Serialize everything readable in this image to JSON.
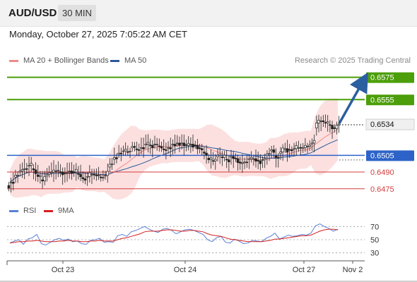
{
  "header": {
    "symbol": "AUD/USD",
    "interval": "30 MIN",
    "datetime": "Monday, October 27, 2025 7:05:22 AM CET"
  },
  "legend": {
    "ma20": {
      "label": "MA 20 + Bollinger Bands",
      "color": "#f08a8a"
    },
    "ma50": {
      "label": "MA 50",
      "color": "#2a5a9a"
    },
    "credit": "Research © 2025 Trading Central"
  },
  "rsi_legend": {
    "rsi": {
      "label": "RSI",
      "color": "#5a7fd6"
    },
    "ma9": {
      "label": "9MA",
      "color": "#d42020"
    }
  },
  "colors": {
    "resistance": "#4c9e0a",
    "support_blue": "#2d63c8",
    "support_red": "#d43c3c",
    "candle_up": "#2a2a2a",
    "band_fill": "#fbdada",
    "arrow": "#2a5fa0"
  },
  "chart_data": [
    {
      "type": "candlestick",
      "y_range": [
        0.6466,
        0.6583
      ],
      "current_price": "0.6534",
      "levels": [
        {
          "value": 0.6575,
          "label": "0.6575",
          "kind": "resistance"
        },
        {
          "value": 0.6555,
          "label": "0.6555",
          "kind": "resistance"
        },
        {
          "value": 0.6505,
          "label": "0.6505",
          "kind": "support-primary"
        },
        {
          "value": 0.649,
          "label": "0.6490",
          "kind": "support"
        },
        {
          "value": 0.6475,
          "label": "0.6475",
          "kind": "support"
        }
      ],
      "x_labels": [
        "Oct 23",
        "Oct 24",
        "Oct 27",
        "Nov 2"
      ],
      "close_path": [
        0.6481,
        0.6487,
        0.6491,
        0.6493,
        0.6496,
        0.6492,
        0.6486,
        0.6482,
        0.6488,
        0.649,
        0.6491,
        0.649,
        0.6489,
        0.6491,
        0.649,
        0.6488,
        0.6484,
        0.6486,
        0.6488,
        0.6487,
        0.6485,
        0.6487,
        0.6497,
        0.6503,
        0.6507,
        0.6509,
        0.6508,
        0.6513,
        0.651,
        0.6512,
        0.6515,
        0.6514,
        0.6515,
        0.6513,
        0.651,
        0.6512,
        0.6515,
        0.6516,
        0.6516,
        0.6514,
        0.6515,
        0.6514,
        0.6511,
        0.6507,
        0.6501,
        0.65,
        0.6505,
        0.6503,
        0.6501,
        0.6504,
        0.6502,
        0.6498,
        0.6499,
        0.6502,
        0.6502,
        0.65,
        0.6501,
        0.6506,
        0.651,
        0.6503,
        0.6508,
        0.6511,
        0.651,
        0.6511,
        0.6512,
        0.6512,
        0.6513,
        0.6516,
        0.6534,
        0.6536,
        0.6534,
        0.6532,
        0.6529,
        0.6533
      ]
    },
    {
      "type": "line",
      "title": "RSI",
      "y_ticks": [
        "70",
        "50",
        "30"
      ],
      "y_range": [
        20,
        80
      ],
      "rsi_values": [
        45,
        48,
        50,
        43,
        51,
        53,
        58,
        44,
        42,
        46,
        50,
        52,
        49,
        51,
        47,
        48,
        44,
        43,
        49,
        50,
        52,
        46,
        47,
        46,
        56,
        58,
        55,
        62,
        64,
        67,
        70,
        66,
        63,
        61,
        66,
        67,
        64,
        59,
        62,
        65,
        66,
        64,
        61,
        58,
        50,
        47,
        53,
        55,
        46,
        45,
        51,
        48,
        44,
        45,
        49,
        48,
        47,
        52,
        55,
        60,
        51,
        54,
        57,
        55,
        56,
        58,
        57,
        60,
        71,
        74,
        70,
        67,
        63,
        66
      ],
      "ma9_values": [
        45,
        46,
        47,
        47,
        48,
        48,
        49,
        48,
        47,
        47,
        47,
        48,
        48,
        49,
        48,
        48,
        47,
        47,
        48,
        48,
        49,
        48,
        48,
        48,
        50,
        52,
        53,
        55,
        57,
        59,
        62,
        63,
        63,
        63,
        64,
        65,
        65,
        64,
        63,
        63,
        64,
        64,
        63,
        62,
        59,
        57,
        56,
        55,
        53,
        51,
        50,
        49,
        48,
        47,
        47,
        47,
        47,
        48,
        49,
        51,
        51,
        52,
        53,
        54,
        55,
        56,
        56,
        57,
        60,
        63,
        65,
        66,
        66,
        65
      ]
    }
  ]
}
